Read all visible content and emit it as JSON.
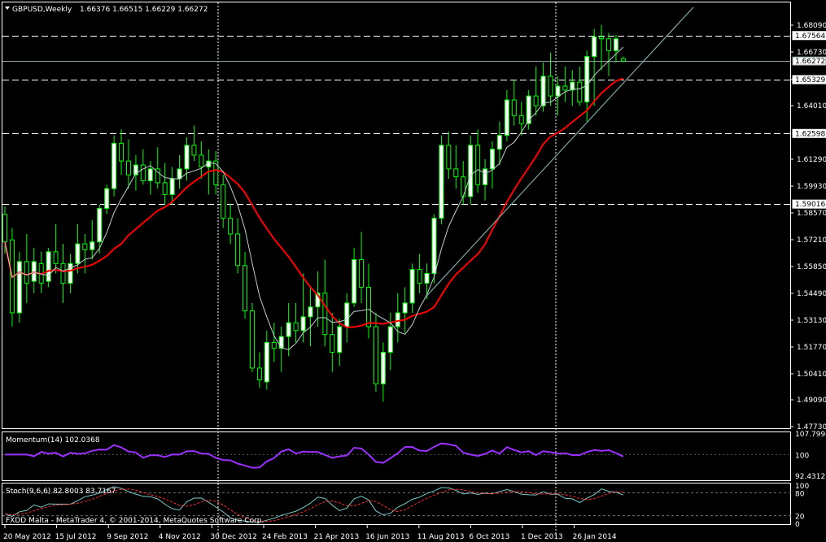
{
  "header": {
    "symbol_period": "GBPUSD,Weekly",
    "ohlc": "1.66376 1.66515 1.66229 1.66272"
  },
  "price_axis": {
    "ticks": [
      "1.68090",
      "1.66730",
      "1.65329",
      "1.64010",
      "1.61290",
      "1.59930",
      "1.58570",
      "1.57210",
      "1.55850",
      "1.54490",
      "1.53130",
      "1.51770",
      "1.50410",
      "1.49090",
      "1.47730"
    ],
    "tick_values": [
      1.6809,
      1.6673,
      1.6533,
      1.6401,
      1.6129,
      1.5993,
      1.5857,
      1.5721,
      1.5585,
      1.5449,
      1.5313,
      1.5177,
      1.5041,
      1.4909,
      1.4773
    ],
    "highlight_labels": [
      "1.67564",
      "1.66272",
      "1.65329",
      "1.62598",
      "1.59016"
    ],
    "highlight_values": [
      1.67564,
      1.66272,
      1.65329,
      1.62598,
      1.59016
    ],
    "current_price_label": "1.66272"
  },
  "levels": [
    1.67564,
    1.65329,
    1.62598,
    1.59016
  ],
  "momentum": {
    "label": "Momentum(14) 102.0368",
    "ticks": [
      "107.7994",
      "100",
      "92.4312"
    ],
    "tick_values": [
      107.7994,
      100,
      92.4312
    ],
    "color": "#9b30ff"
  },
  "stoch": {
    "label": "Stoch(9,6,6) 82.8003 83.7167",
    "ticks": [
      "100",
      "80",
      "20",
      "0"
    ],
    "tick_values": [
      100,
      80,
      20,
      0
    ],
    "main_color": "#7fc9c9",
    "signal_color": "#ff3030"
  },
  "copyright": "FXDD Malta - MetaTrader 4, © 2001-2014, MetaQuotes Software Corp.",
  "time_axis": {
    "labels": [
      "20 May 2012",
      "15 Jul 2012",
      "9 Sep 2012",
      "4 Nov 2012",
      "30 Dec 2012",
      "24 Feb 2013",
      "21 Apr 2013",
      "16 Jun 2013",
      "11 Aug 2013",
      "6 Oct 2013",
      "1 Dec 2013",
      "26 Jan 2014"
    ]
  },
  "colors": {
    "background": "#000000",
    "candle": "#00ff00",
    "bull_body": "#ffffff",
    "bear_body": "#000000",
    "ma_slow": "#ff0000",
    "ma_fast": "#bfcfcf",
    "trendline": "#7fa3a3"
  },
  "chart_data": {
    "type": "candlestick",
    "symbol": "GBPUSD",
    "timeframe": "Weekly",
    "ylim": [
      1.4773,
      1.6809
    ],
    "candles": [
      [
        1.585,
        1.589,
        1.565,
        1.571
      ],
      [
        1.572,
        1.578,
        1.528,
        1.535
      ],
      [
        1.535,
        1.566,
        1.53,
        1.561
      ],
      [
        1.561,
        1.575,
        1.54,
        1.55
      ],
      [
        1.551,
        1.568,
        1.545,
        1.561
      ],
      [
        1.56,
        1.566,
        1.545,
        1.55
      ],
      [
        1.551,
        1.568,
        1.548,
        1.566
      ],
      [
        1.566,
        1.58,
        1.555,
        1.56
      ],
      [
        1.56,
        1.57,
        1.54,
        1.55
      ],
      [
        1.55,
        1.565,
        1.545,
        1.56
      ],
      [
        1.56,
        1.58,
        1.555,
        1.57
      ],
      [
        1.57,
        1.575,
        1.555,
        1.567
      ],
      [
        1.567,
        1.582,
        1.562,
        1.571
      ],
      [
        1.571,
        1.59,
        1.565,
        1.588
      ],
      [
        1.588,
        1.6,
        1.585,
        1.598
      ],
      [
        1.598,
        1.625,
        1.594,
        1.621
      ],
      [
        1.621,
        1.628,
        1.605,
        1.612
      ],
      [
        1.612,
        1.623,
        1.598,
        1.605
      ],
      [
        1.605,
        1.615,
        1.597,
        1.61
      ],
      [
        1.61,
        1.618,
        1.6,
        1.602
      ],
      [
        1.602,
        1.612,
        1.595,
        1.608
      ],
      [
        1.608,
        1.619,
        1.598,
        1.601
      ],
      [
        1.601,
        1.611,
        1.59,
        1.595
      ],
      [
        1.595,
        1.609,
        1.59,
        1.603
      ],
      [
        1.603,
        1.615,
        1.598,
        1.608
      ],
      [
        1.608,
        1.624,
        1.602,
        1.62
      ],
      [
        1.62,
        1.63,
        1.612,
        1.615
      ],
      [
        1.615,
        1.622,
        1.603,
        1.609
      ],
      [
        1.609,
        1.618,
        1.595,
        1.612
      ],
      [
        1.612,
        1.617,
        1.595,
        1.6
      ],
      [
        1.6,
        1.605,
        1.578,
        1.583
      ],
      [
        1.583,
        1.59,
        1.57,
        1.575
      ],
      [
        1.575,
        1.583,
        1.555,
        1.559
      ],
      [
        1.559,
        1.566,
        1.532,
        1.536
      ],
      [
        1.536,
        1.54,
        1.505,
        1.507
      ],
      [
        1.507,
        1.515,
        1.497,
        1.501
      ],
      [
        1.5,
        1.526,
        1.496,
        1.52
      ],
      [
        1.52,
        1.53,
        1.51,
        1.517
      ],
      [
        1.517,
        1.528,
        1.505,
        1.523
      ],
      [
        1.523,
        1.54,
        1.513,
        1.53
      ],
      [
        1.53,
        1.54,
        1.52,
        1.526
      ],
      [
        1.526,
        1.555,
        1.52,
        1.533
      ],
      [
        1.533,
        1.548,
        1.518,
        1.538
      ],
      [
        1.538,
        1.556,
        1.528,
        1.545
      ],
      [
        1.545,
        1.562,
        1.518,
        1.524
      ],
      [
        1.524,
        1.535,
        1.505,
        1.515
      ],
      [
        1.515,
        1.532,
        1.508,
        1.528
      ],
      [
        1.528,
        1.545,
        1.52,
        1.54
      ],
      [
        1.54,
        1.568,
        1.538,
        1.562
      ],
      [
        1.562,
        1.576,
        1.54,
        1.548
      ],
      [
        1.548,
        1.56,
        1.522,
        1.528
      ],
      [
        1.528,
        1.535,
        1.495,
        1.499
      ],
      [
        1.499,
        1.52,
        1.49,
        1.515
      ],
      [
        1.515,
        1.535,
        1.506,
        1.528
      ],
      [
        1.528,
        1.545,
        1.52,
        1.535
      ],
      [
        1.535,
        1.548,
        1.525,
        1.54
      ],
      [
        1.54,
        1.56,
        1.535,
        1.557
      ],
      [
        1.557,
        1.565,
        1.545,
        1.55
      ],
      [
        1.55,
        1.56,
        1.542,
        1.555
      ],
      [
        1.555,
        1.585,
        1.55,
        1.583
      ],
      [
        1.583,
        1.625,
        1.58,
        1.62
      ],
      [
        1.62,
        1.627,
        1.603,
        1.608
      ],
      [
        1.608,
        1.62,
        1.598,
        1.604
      ],
      [
        1.604,
        1.612,
        1.59,
        1.594
      ],
      [
        1.594,
        1.625,
        1.59,
        1.62
      ],
      [
        1.62,
        1.628,
        1.596,
        1.6
      ],
      [
        1.6,
        1.613,
        1.592,
        1.608
      ],
      [
        1.608,
        1.622,
        1.598,
        1.618
      ],
      [
        1.618,
        1.632,
        1.61,
        1.625
      ],
      [
        1.625,
        1.648,
        1.622,
        1.643
      ],
      [
        1.643,
        1.653,
        1.63,
        1.635
      ],
      [
        1.635,
        1.642,
        1.625,
        1.631
      ],
      [
        1.631,
        1.648,
        1.628,
        1.645
      ],
      [
        1.645,
        1.66,
        1.635,
        1.64
      ],
      [
        1.64,
        1.662,
        1.637,
        1.655
      ],
      [
        1.655,
        1.667,
        1.64,
        1.645
      ],
      [
        1.645,
        1.655,
        1.635,
        1.65
      ],
      [
        1.65,
        1.66,
        1.642,
        1.648
      ],
      [
        1.648,
        1.658,
        1.64,
        1.652
      ],
      [
        1.652,
        1.66,
        1.64,
        1.642
      ],
      [
        1.642,
        1.668,
        1.632,
        1.665
      ],
      [
        1.665,
        1.679,
        1.64,
        1.675
      ],
      [
        1.675,
        1.681,
        1.658,
        1.674
      ],
      [
        1.674,
        1.677,
        1.655,
        1.668
      ],
      [
        1.668,
        1.676,
        1.662,
        1.674
      ],
      [
        1.664,
        1.665,
        1.662,
        1.6627
      ]
    ]
  }
}
